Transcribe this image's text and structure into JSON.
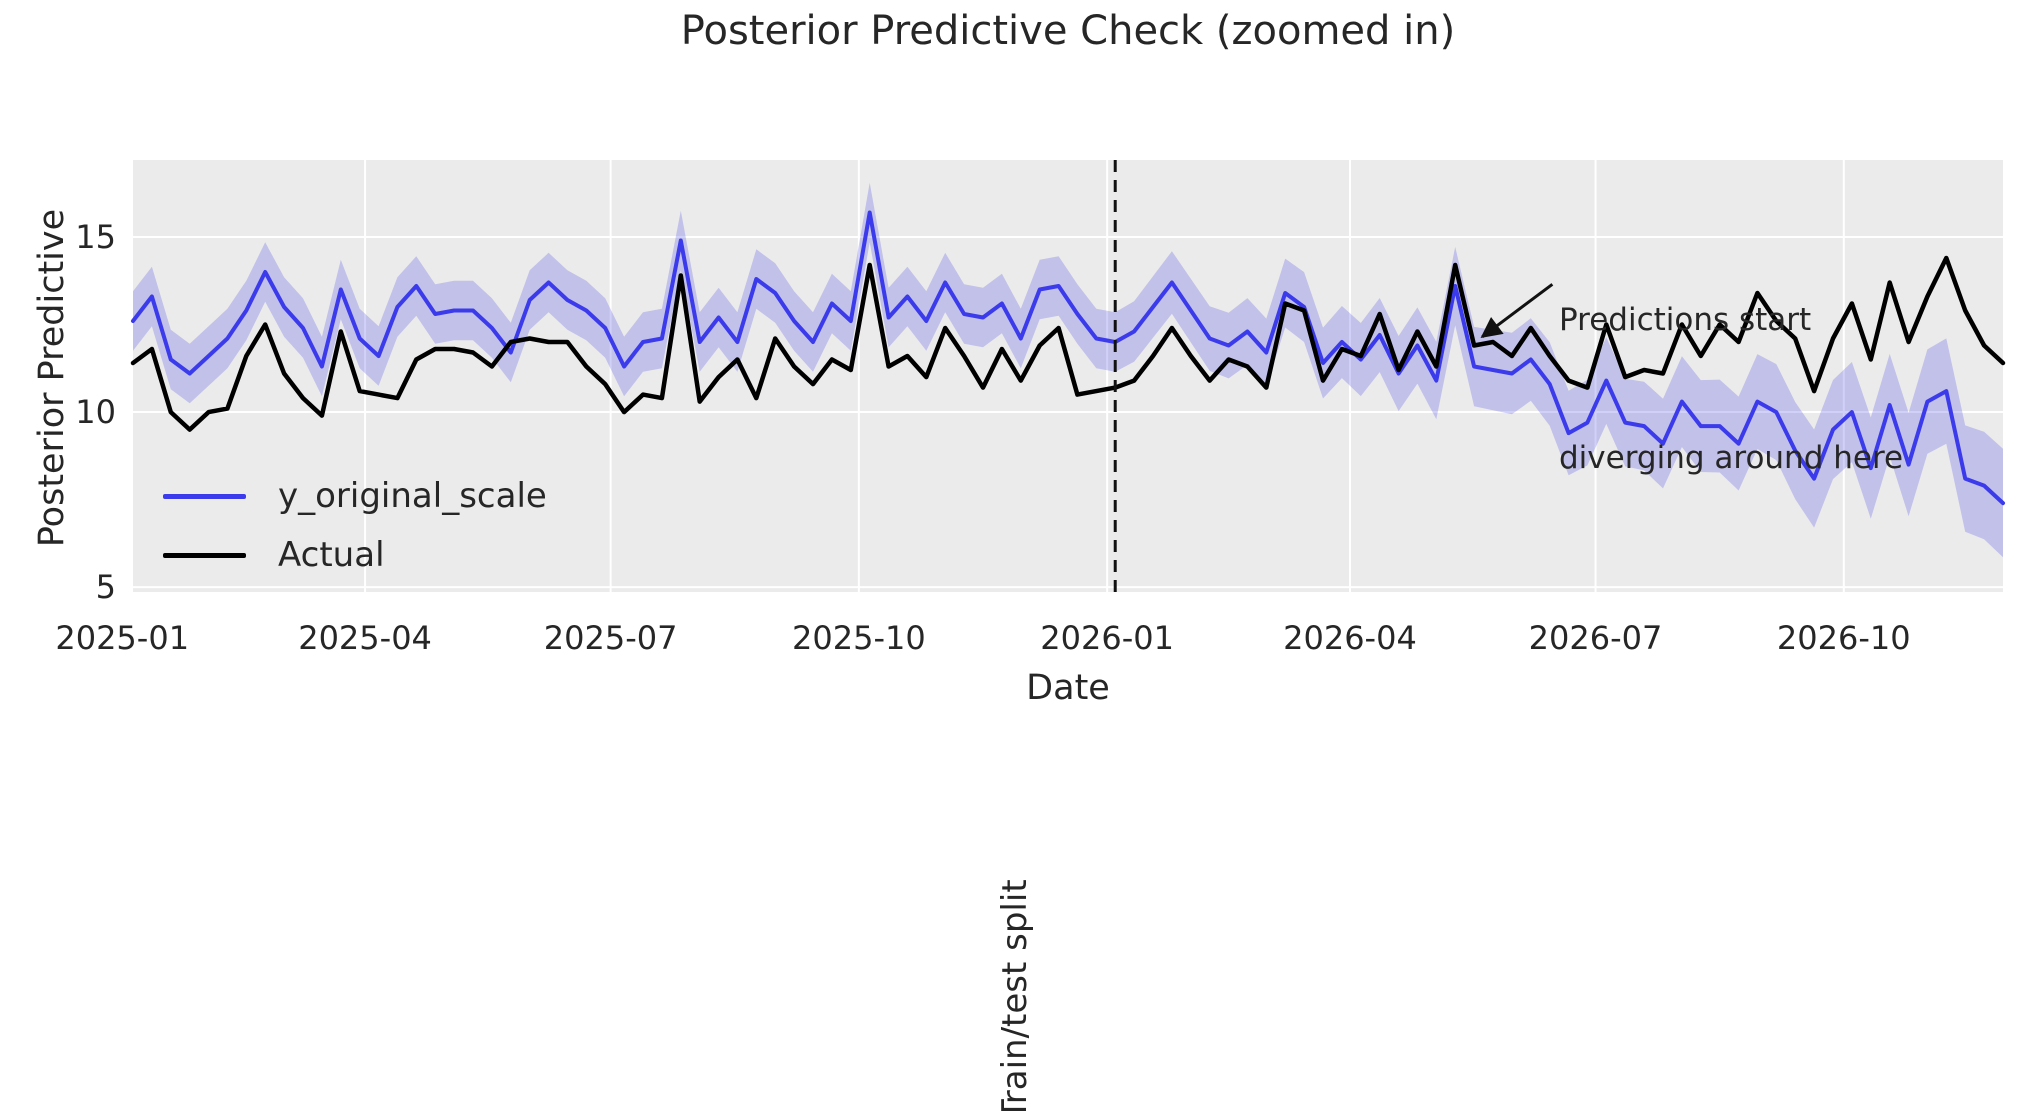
{
  "title": "Posterior Predictive Check (zoomed in)",
  "axes": {
    "xlabel": "Date",
    "ylabel": "Posterior Predictive",
    "background": "#ebebeb",
    "grid_color": "#ffffff",
    "text_color": "#262626"
  },
  "legend": {
    "items": [
      {
        "label": "y_original_scale",
        "color": "#3b3beb"
      },
      {
        "label": "Actual",
        "color": "#000000"
      }
    ]
  },
  "annotation": {
    "line1": "Predictions start",
    "line2": "diverging around here",
    "arrow_tip_day": 500,
    "arrow_tip_value": 12.15,
    "arrow_start_day": 526,
    "arrow_start_value": 13.65
  },
  "split": {
    "label": "Train/test split",
    "day": 364
  },
  "chart_data": {
    "type": "line",
    "title": "Posterior Predictive Check (zoomed in)",
    "xlabel": "Date",
    "ylabel": "Posterior Predictive",
    "x_start_date": "2025-01-05",
    "x_freq_days": 7,
    "n_points": 100,
    "x_span_days": 693,
    "ylim": [
      4.86,
      17.2
    ],
    "yticks": [
      5,
      10,
      15
    ],
    "xticks": [
      {
        "label": "2025-01",
        "day": -4
      },
      {
        "label": "2025-04",
        "day": 86
      },
      {
        "label": "2025-07",
        "day": 177
      },
      {
        "label": "2025-10",
        "day": 269
      },
      {
        "label": "2026-01",
        "day": 361
      },
      {
        "label": "2026-04",
        "day": 451
      },
      {
        "label": "2026-07",
        "day": 542
      },
      {
        "label": "2026-10",
        "day": 634
      }
    ],
    "grid": true,
    "legend_position": "lower-left",
    "series": [
      {
        "name": "y_original_scale",
        "color": "#3b3beb",
        "width": 4,
        "values": [
          12.6,
          13.3,
          11.5,
          11.1,
          11.6,
          12.1,
          12.9,
          14.0,
          13.0,
          12.4,
          11.3,
          13.5,
          12.1,
          11.6,
          13.0,
          13.6,
          12.8,
          12.9,
          12.9,
          12.4,
          11.7,
          13.2,
          13.7,
          13.2,
          12.9,
          12.4,
          11.3,
          12.0,
          12.1,
          14.9,
          12.0,
          12.7,
          12.0,
          13.8,
          13.4,
          12.6,
          12.0,
          13.1,
          12.6,
          15.7,
          12.7,
          13.3,
          12.6,
          13.7,
          12.8,
          12.7,
          13.1,
          12.1,
          13.5,
          13.6,
          12.8,
          12.1,
          12.0,
          12.3,
          13.0,
          13.7,
          12.9,
          12.1,
          11.9,
          12.3,
          11.7,
          13.4,
          13.0,
          11.4,
          12.0,
          11.5,
          12.2,
          11.1,
          11.9,
          10.9,
          13.6,
          11.3,
          11.2,
          11.1,
          11.5,
          10.8,
          9.4,
          9.7,
          10.9,
          9.7,
          9.6,
          9.1,
          10.3,
          9.6,
          9.6,
          9.1,
          10.3,
          10.0,
          8.9,
          8.1,
          9.5,
          10.0,
          8.4,
          10.2,
          8.5,
          10.3,
          10.6,
          8.1,
          7.9,
          7.4
        ]
      },
      {
        "name": "Actual",
        "color": "#000000",
        "width": 4.5,
        "values": [
          11.4,
          11.8,
          10.0,
          9.5,
          10.0,
          10.1,
          11.6,
          12.5,
          11.1,
          10.4,
          9.9,
          12.3,
          10.6,
          10.5,
          10.4,
          11.5,
          11.8,
          11.8,
          11.7,
          11.3,
          12.0,
          12.1,
          12.0,
          12.0,
          11.3,
          10.8,
          10.0,
          10.5,
          10.4,
          13.9,
          10.3,
          11.0,
          11.5,
          10.4,
          12.1,
          11.3,
          10.8,
          11.5,
          11.2,
          14.2,
          11.3,
          11.6,
          11.0,
          12.4,
          11.6,
          10.7,
          11.8,
          10.9,
          11.9,
          12.4,
          10.5,
          10.6,
          10.7,
          10.9,
          11.6,
          12.4,
          11.6,
          10.9,
          11.5,
          11.3,
          10.7,
          13.1,
          12.9,
          10.9,
          11.8,
          11.6,
          12.8,
          11.2,
          12.3,
          11.3,
          14.2,
          11.9,
          12.0,
          11.6,
          12.4,
          11.6,
          10.9,
          10.7,
          12.5,
          11.0,
          11.2,
          11.1,
          12.5,
          11.6,
          12.5,
          12.0,
          13.4,
          12.6,
          12.1,
          10.6,
          12.1,
          13.1,
          11.5,
          13.7,
          12.0,
          13.3,
          14.4,
          12.9,
          11.9,
          11.4
        ]
      }
    ],
    "uncertainty_band": {
      "around_series": "y_original_scale",
      "fill_color": "rgba(80,82,232,0.27)",
      "halfwidth_start": 0.85,
      "halfwidth_end": 1.55,
      "widen_from_index": 52
    },
    "split_line": {
      "day": 364,
      "style": "dashed",
      "color": "#111111",
      "label": "Train/test split"
    }
  }
}
